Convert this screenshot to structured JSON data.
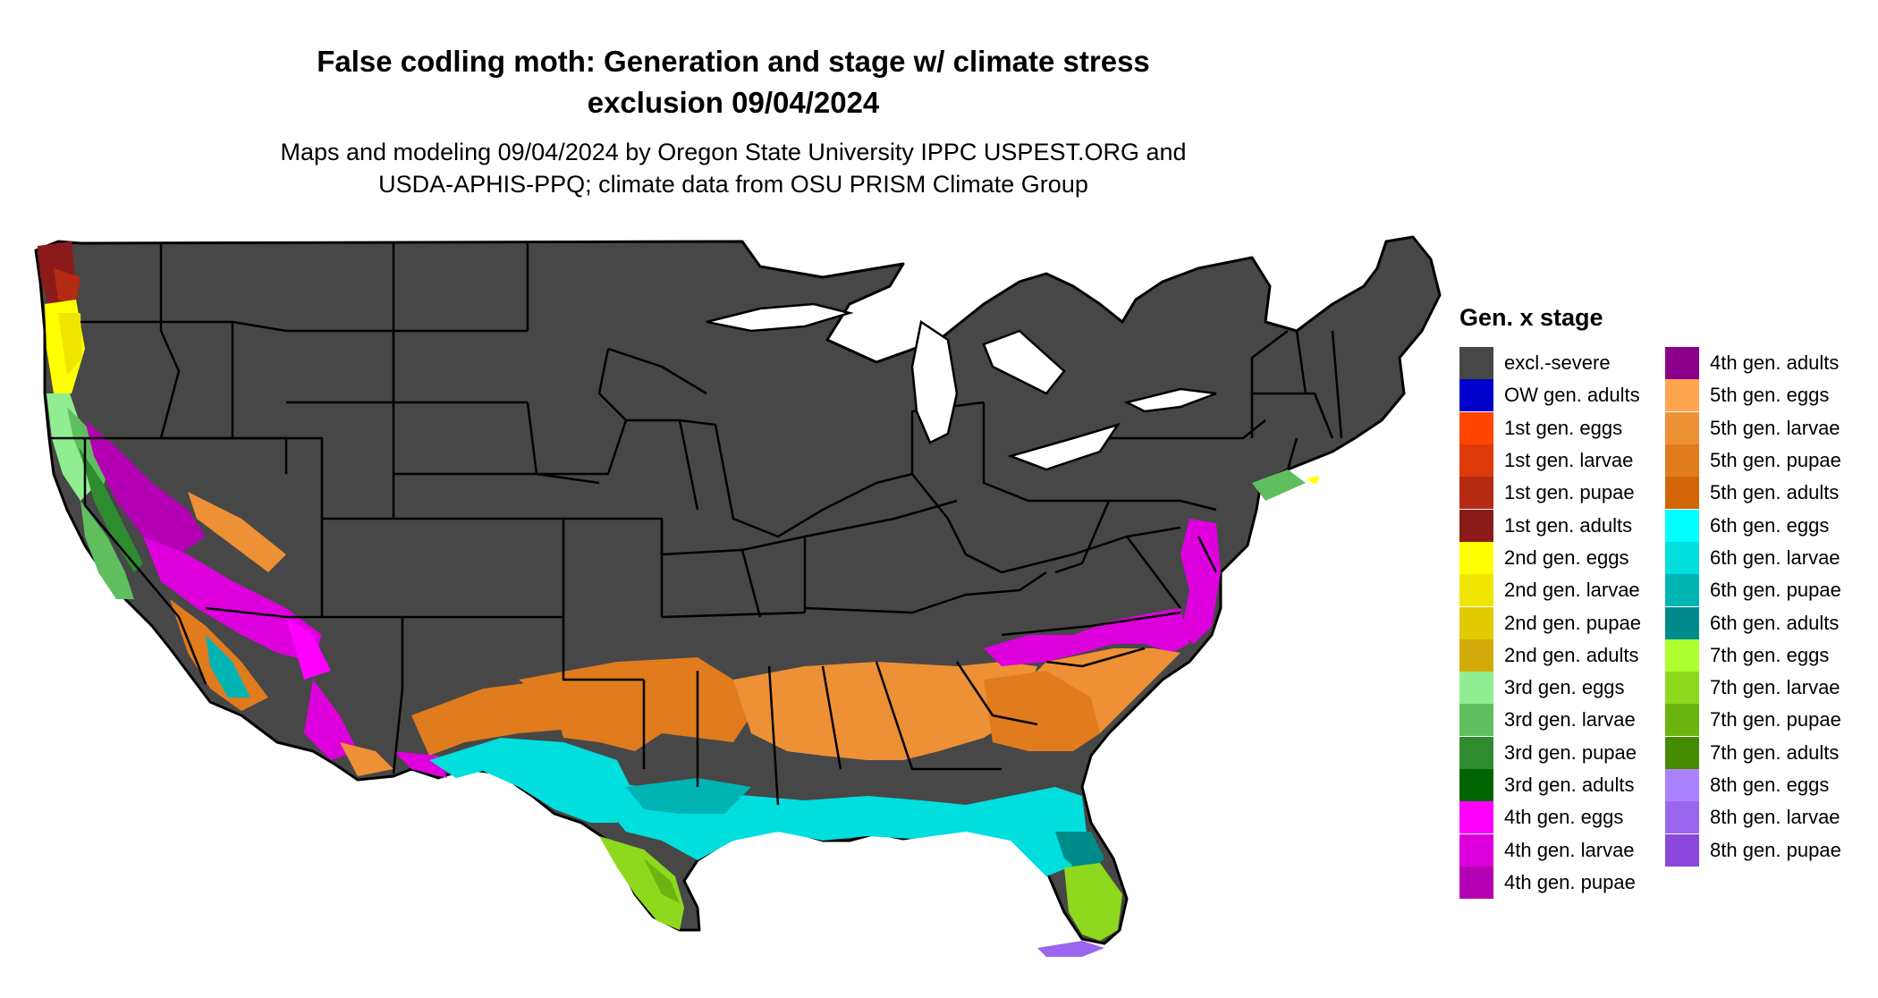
{
  "title": {
    "line1": "False codling moth: Generation and stage w/ climate stress",
    "line2": "exclusion 09/04/2024"
  },
  "subtitle": {
    "line1": "Maps and modeling 09/04/2024 by Oregon State University IPPC USPEST.ORG and",
    "line2": "USDA-APHIS-PPQ; climate data from OSU PRISM Climate Group"
  },
  "map": {
    "region": "Contiguous United States",
    "base_color": "#474747",
    "border_color": "#000000"
  },
  "legend": {
    "title": "Gen. x stage",
    "columns": [
      [
        {
          "label": "excl.-severe",
          "color": "#474747"
        },
        {
          "label": "OW gen. adults",
          "color": "#0000cd"
        },
        {
          "label": "1st gen. eggs",
          "color": "#ff4500"
        },
        {
          "label": "1st gen. larvae",
          "color": "#de3a0a"
        },
        {
          "label": "1st gen. pupae",
          "color": "#b42a12"
        },
        {
          "label": "1st gen. adults",
          "color": "#8b1a1a"
        },
        {
          "label": "2nd gen. eggs",
          "color": "#ffff00"
        },
        {
          "label": "2nd gen. larvae",
          "color": "#eee600"
        },
        {
          "label": "2nd gen. pupae",
          "color": "#e0cc00"
        },
        {
          "label": "2nd gen. adults",
          "color": "#d2aa0a"
        },
        {
          "label": "3rd gen. eggs",
          "color": "#90ee90"
        },
        {
          "label": "3rd gen. larvae",
          "color": "#5fbf5f"
        },
        {
          "label": "3rd gen. pupae",
          "color": "#2e8b2e"
        },
        {
          "label": "3rd gen. adults",
          "color": "#006400"
        },
        {
          "label": "4th gen. eggs",
          "color": "#ff00ff"
        },
        {
          "label": "4th gen. larvae",
          "color": "#dd00dd"
        },
        {
          "label": "4th gen. pupae",
          "color": "#b400b4"
        }
      ],
      [
        {
          "label": "4th gen. adults",
          "color": "#8b008b"
        },
        {
          "label": "5th gen. eggs",
          "color": "#ffa54f"
        },
        {
          "label": "5th gen. larvae",
          "color": "#ee9036"
        },
        {
          "label": "5th gen. pupae",
          "color": "#e07b1e"
        },
        {
          "label": "5th gen. adults",
          "color": "#d26608"
        },
        {
          "label": "6th gen. eggs",
          "color": "#00ffff"
        },
        {
          "label": "6th gen. larvae",
          "color": "#00dede"
        },
        {
          "label": "6th gen. pupae",
          "color": "#00b4b4"
        },
        {
          "label": "6th gen. adults",
          "color": "#008b8b"
        },
        {
          "label": "7th gen. eggs",
          "color": "#adff2f"
        },
        {
          "label": "7th gen. larvae",
          "color": "#8ed81e"
        },
        {
          "label": "7th gen. pupae",
          "color": "#6cb40f"
        },
        {
          "label": "7th gen. adults",
          "color": "#458b00"
        },
        {
          "label": "8th gen. eggs",
          "color": "#ab82ff"
        },
        {
          "label": "8th gen. larvae",
          "color": "#9b66ee"
        },
        {
          "label": "8th gen. pupae",
          "color": "#8a48dc"
        }
      ]
    ]
  }
}
